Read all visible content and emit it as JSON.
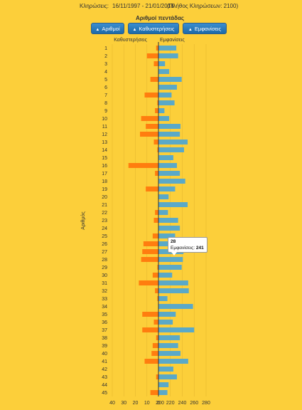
{
  "header": {
    "draws_label": "Κληρώσεις:",
    "date_range": "16/11/1997 - 21/01/2018",
    "draw_count": "(Πλήθος Κληρώσεων: 2100)"
  },
  "buttons": [
    {
      "label": "Αριθμοί",
      "icon": "sort-arrow-icon"
    },
    {
      "label": "Καθυστερήσεις",
      "icon": "sort-arrow-icon"
    },
    {
      "label": "Εμφανίσεις",
      "icon": "sort-arrow-icon"
    }
  ],
  "tooltip": {
    "number": "28",
    "label": "Εμφανίσεις:",
    "value": "241"
  },
  "chart_data": {
    "type": "bar",
    "orientation": "horizontal",
    "title": "Αριθμοί πεντάδας",
    "ylabel": "Αριθμός",
    "categories": [
      "1",
      "2",
      "3",
      "4",
      "5",
      "6",
      "7",
      "8",
      "9",
      "10",
      "11",
      "12",
      "13",
      "14",
      "15",
      "16",
      "17",
      "18",
      "19",
      "20",
      "21",
      "22",
      "23",
      "24",
      "25",
      "26",
      "27",
      "28",
      "29",
      "30",
      "31",
      "32",
      "33",
      "34",
      "35",
      "36",
      "37",
      "38",
      "39",
      "40",
      "41",
      "42",
      "43",
      "44",
      "45"
    ],
    "series": [
      {
        "name": "Καθυστερήσεις",
        "color": "#ff7d0f",
        "direction": "left",
        "values": [
          2,
          10,
          4,
          0,
          7,
          0,
          12,
          1,
          3,
          15,
          11,
          16,
          4,
          1,
          0,
          26,
          3,
          0,
          11,
          0,
          0,
          3,
          4,
          0,
          5,
          13,
          14,
          15,
          1,
          5,
          17,
          3,
          1,
          0,
          14,
          4,
          14,
          2,
          5,
          6,
          12,
          0,
          2,
          0,
          7
        ]
      },
      {
        "name": "Εμφανίσεις",
        "color": "#5aa9c8",
        "direction": "right",
        "values": [
          230,
          233,
          211,
          218,
          239,
          231,
          222,
          227,
          210,
          218,
          237,
          236,
          249,
          243,
          225,
          231,
          236,
          245,
          228,
          217,
          249,
          216,
          233,
          236,
          228,
          233,
          242,
          241,
          239,
          223,
          250,
          251,
          215,
          258,
          229,
          224,
          260,
          236,
          233,
          237,
          250,
          225,
          231,
          217,
          215
        ]
      }
    ],
    "left_axis": {
      "ticks": [
        "40",
        "30",
        "20",
        "10",
        "0"
      ],
      "range": [
        0,
        40
      ]
    },
    "right_axis": {
      "ticks": [
        "200",
        "220",
        "240",
        "260",
        "280"
      ],
      "range": [
        200,
        280
      ]
    },
    "grid": true,
    "legend": "top"
  }
}
